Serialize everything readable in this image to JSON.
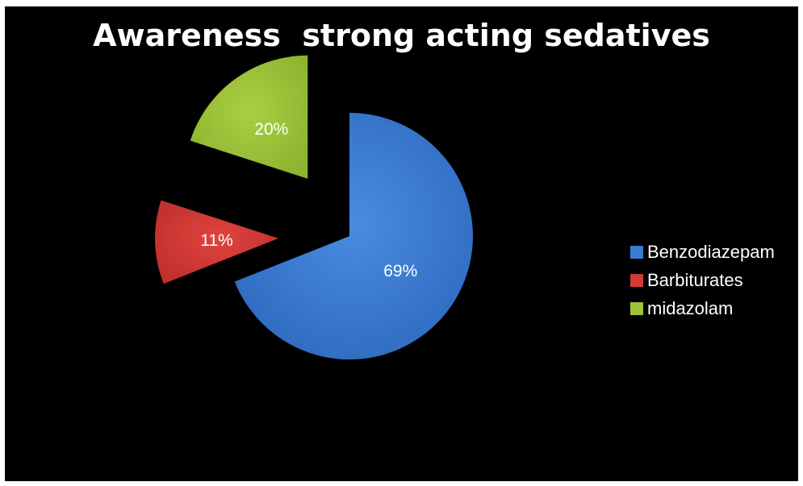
{
  "chart_data": {
    "type": "pie",
    "title": "Awareness  strong acting sedatives",
    "slices": [
      {
        "label": "Benzodiazepam",
        "value": 69,
        "display": "69%",
        "color": "#3A7BD0"
      },
      {
        "label": "Barbiturates",
        "value": 11,
        "display": "11%",
        "color": "#D23A36"
      },
      {
        "label": "midazolam",
        "value": 20,
        "display": "20%",
        "color": "#9DC43A"
      }
    ],
    "legend_position": "right",
    "exploded": true,
    "background": "#000000"
  }
}
